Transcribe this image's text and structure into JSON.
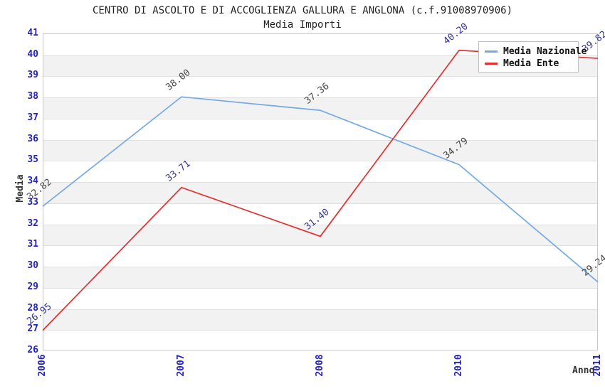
{
  "chart_data": {
    "type": "line",
    "title": "CENTRO DI ASCOLTO E DI ACCOGLIENZA GALLURA E ANGLONA (c.f.91008970906)",
    "subtitle": "Media Importi",
    "xlabel": "Anno",
    "ylabel": "Media",
    "categories": [
      "2006",
      "2007",
      "2008",
      "2010",
      "2011"
    ],
    "ylim": [
      26,
      41
    ],
    "ytick_step": 1,
    "grid": "horizontal-alternating-bands",
    "legend_position": "top-right",
    "series": [
      {
        "name": "Media Nazionale",
        "color": "#74a9e3",
        "label_color": "#444444",
        "values": [
          32.82,
          38.0,
          37.36,
          34.79,
          29.24
        ]
      },
      {
        "name": "Media Ente",
        "color": "#e62e2e",
        "label_color": "#333399",
        "values": [
          26.95,
          33.71,
          31.4,
          40.2,
          39.82
        ]
      }
    ],
    "colors": {
      "tick_label": "#2222cc",
      "band_gray": "#f2f2f2",
      "band_white": "#ffffff",
      "gridline": "#e0e0e0",
      "frame": "#c9c9c9",
      "title": "#222222",
      "axis_label": "#333333"
    }
  }
}
